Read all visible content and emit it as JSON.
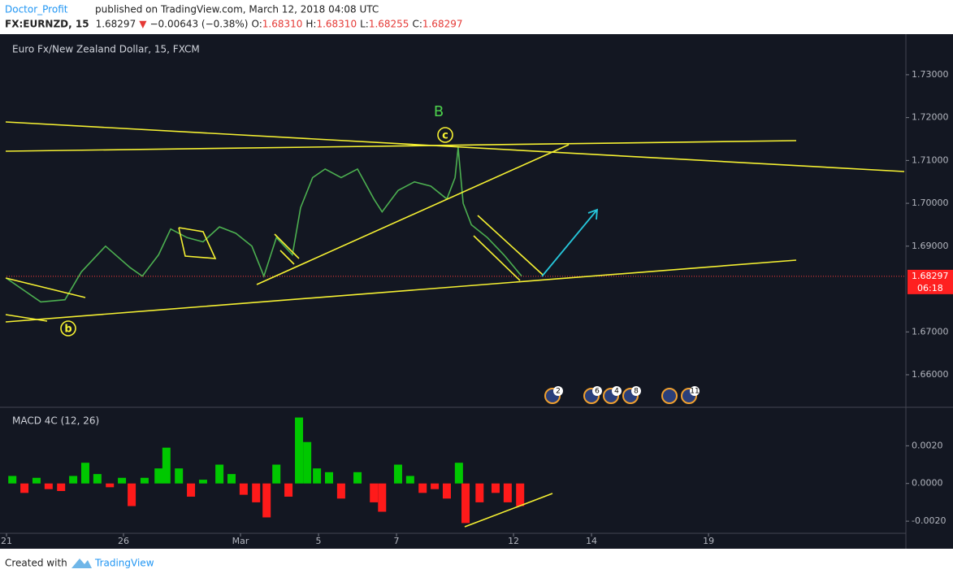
{
  "header": {
    "author": "Doctor_Profit",
    "published": "published on TradingView.com, March 12, 2018 04:08 UTC",
    "symbol": "FX:EURNZD, 15",
    "price": "1.68297",
    "direction": "▼",
    "change": "−0.00643 (−0.38%)",
    "ohlc": [
      {
        "key": "O:",
        "value": "1.68310"
      },
      {
        "key": "H:",
        "value": "1.68310"
      },
      {
        "key": "L:",
        "value": "1.68255"
      },
      {
        "key": "C:",
        "value": "1.68297"
      }
    ]
  },
  "chart_data": [
    {
      "type": "line",
      "title": "Euro Fx/New Zealand Dollar, 15, FXCM",
      "color": "#4caf50",
      "x": [
        0,
        0.88,
        1.5,
        1.92,
        2.54,
        3.17,
        3.48,
        3.9,
        4.21,
        4.63,
        5.04,
        5.46,
        5.88,
        6.29,
        6.6,
        6.92,
        7.33,
        7.54,
        7.85,
        8.17,
        8.58,
        9,
        9.42,
        9.63,
        10.04,
        10.46,
        10.88,
        11.29,
        11.5,
        11.58,
        11.71,
        11.92,
        12.33,
        12.75,
        13.21
      ],
      "values": [
        1.6825,
        1.677,
        1.6775,
        1.684,
        1.69,
        1.685,
        1.683,
        1.688,
        1.694,
        1.692,
        1.691,
        1.6945,
        1.693,
        1.69,
        1.683,
        1.692,
        1.688,
        1.699,
        1.706,
        1.708,
        1.706,
        1.708,
        1.701,
        1.698,
        1.703,
        1.705,
        1.704,
        1.701,
        1.706,
        1.713,
        1.7,
        1.695,
        1.692,
        1.688,
        1.683
      ],
      "xlim": [
        0,
        23.06
      ],
      "xticks": [
        {
          "value": 0,
          "label": "21"
        },
        {
          "value": 3,
          "label": "26"
        },
        {
          "value": 6,
          "label": "Mar"
        },
        {
          "value": 8,
          "label": "5"
        },
        {
          "value": 10,
          "label": "7"
        },
        {
          "value": 13,
          "label": "12"
        },
        {
          "value": 15,
          "label": "14"
        },
        {
          "value": 18,
          "label": "19"
        }
      ],
      "ylim": [
        1.6526,
        1.7389
      ],
      "yticks": [
        {
          "value": 1.66,
          "label": "1.66000"
        },
        {
          "value": 1.67,
          "label": "1.67000"
        },
        {
          "value": 1.69,
          "label": "1.69000"
        },
        {
          "value": 1.7,
          "label": "1.70000"
        },
        {
          "value": 1.71,
          "label": "1.71000"
        },
        {
          "value": 1.72,
          "label": "1.72000"
        },
        {
          "value": 1.73,
          "label": "1.73000"
        }
      ],
      "last_price": {
        "value": 1.68297,
        "label": "1.68297"
      },
      "countdown": "06:18",
      "annotations": [
        "B",
        "c",
        "b"
      ],
      "events": [
        "2",
        "6",
        "4",
        "8",
        "11"
      ],
      "grid": false
    },
    {
      "type": "bar",
      "title": "MACD 4C (12, 26)",
      "up_color": "#00c800",
      "down_color": "#ff1a1a",
      "x": [
        0.15,
        0.46,
        0.77,
        1.08,
        1.4,
        1.71,
        2.02,
        2.33,
        2.65,
        2.96,
        3.21,
        3.54,
        3.9,
        4.1,
        4.42,
        4.73,
        5.04,
        5.46,
        5.77,
        6.08,
        6.4,
        6.67,
        6.92,
        7.23,
        7.5,
        7.71,
        7.96,
        8.27,
        8.58,
        9,
        9.42,
        9.63,
        10.04,
        10.35,
        10.67,
        10.98,
        11.29,
        11.6,
        11.77,
        12.13,
        12.54,
        12.85,
        13.17
      ],
      "values": [
        0.0004,
        -0.0005,
        0.0003,
        -0.0003,
        -0.0004,
        0.0004,
        0.0011,
        0.0005,
        -0.0002,
        0.0003,
        -0.0012,
        0.0003,
        0.0008,
        0.0019,
        0.0008,
        -0.0007,
        0.0002,
        0.001,
        0.0005,
        -0.0006,
        -0.001,
        -0.0018,
        0.001,
        -0.0007,
        0.0035,
        0.0022,
        0.0008,
        0.0006,
        -0.0008,
        0.0006,
        -0.001,
        -0.0015,
        0.001,
        0.0004,
        -0.0005,
        -0.0003,
        -0.0008,
        0.0011,
        -0.0021,
        -0.001,
        -0.0005,
        -0.001,
        -0.0012
      ],
      "xlim": [
        0,
        23.06
      ],
      "ylim": [
        -0.0026,
        0.004
      ],
      "yticks": [
        {
          "value": -0.002,
          "label": "-0.0020"
        },
        {
          "value": 0,
          "label": "0.0000"
        },
        {
          "value": 0.002,
          "label": "0.0020"
        }
      ]
    }
  ],
  "footer": {
    "created": "Created with",
    "brand": "TradingView"
  }
}
